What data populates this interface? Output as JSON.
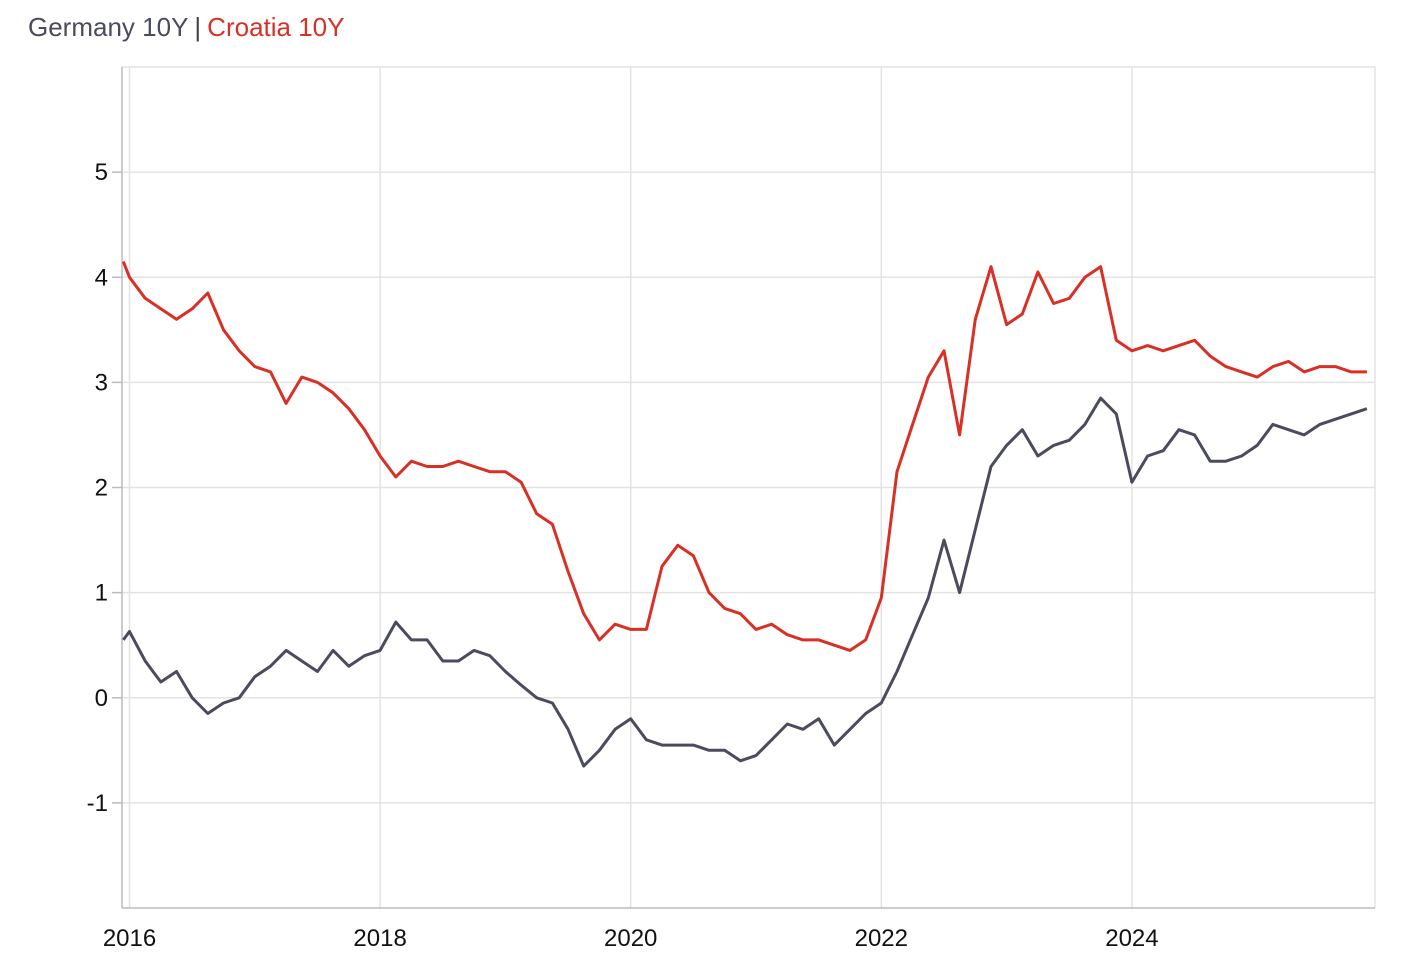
{
  "chart_data": {
    "type": "line",
    "legend_separator": "|",
    "x": [
      2015.95,
      2016.0,
      2016.125,
      2016.25,
      2016.375,
      2016.5,
      2016.625,
      2016.75,
      2016.875,
      2017.0,
      2017.125,
      2017.25,
      2017.375,
      2017.5,
      2017.625,
      2017.75,
      2017.875,
      2018.0,
      2018.125,
      2018.25,
      2018.375,
      2018.5,
      2018.625,
      2018.75,
      2018.875,
      2019.0,
      2019.125,
      2019.25,
      2019.375,
      2019.5,
      2019.625,
      2019.75,
      2019.875,
      2020.0,
      2020.125,
      2020.25,
      2020.375,
      2020.5,
      2020.625,
      2020.75,
      2020.875,
      2021.0,
      2021.125,
      2021.25,
      2021.375,
      2021.5,
      2021.625,
      2021.75,
      2021.875,
      2022.0,
      2022.125,
      2022.25,
      2022.375,
      2022.5,
      2022.625,
      2022.75,
      2022.875,
      2023.0,
      2023.125,
      2023.25,
      2023.375,
      2023.5,
      2023.625,
      2023.75,
      2023.875,
      2024.0,
      2024.125,
      2024.25,
      2024.375,
      2024.5,
      2024.625,
      2024.75,
      2024.875,
      2025.0,
      2025.125,
      2025.25,
      2025.375,
      2025.5,
      2025.625,
      2025.75,
      2025.875
    ],
    "series": [
      {
        "name": "Germany 10Y",
        "color": "#4b4b5e",
        "values": [
          0.55,
          0.63,
          0.35,
          0.15,
          0.25,
          0.0,
          -0.15,
          -0.05,
          0.0,
          0.2,
          0.3,
          0.45,
          0.35,
          0.25,
          0.45,
          0.3,
          0.4,
          0.45,
          0.72,
          0.55,
          0.55,
          0.35,
          0.35,
          0.45,
          0.4,
          0.25,
          0.12,
          0.0,
          -0.05,
          -0.3,
          -0.65,
          -0.5,
          -0.3,
          -0.2,
          -0.4,
          -0.45,
          -0.45,
          -0.45,
          -0.5,
          -0.5,
          -0.6,
          -0.55,
          -0.4,
          -0.25,
          -0.3,
          -0.2,
          -0.45,
          -0.3,
          -0.15,
          -0.05,
          0.25,
          0.6,
          0.95,
          1.5,
          1.0,
          1.6,
          2.2,
          2.4,
          2.55,
          2.3,
          2.4,
          2.45,
          2.6,
          2.85,
          2.7,
          2.05,
          2.3,
          2.35,
          2.55,
          2.5,
          2.25,
          2.25,
          2.3,
          2.4,
          2.6,
          2.55,
          2.5,
          2.6,
          2.65,
          2.7,
          2.75
        ]
      },
      {
        "name": "Croatia 10Y",
        "color": "#d93025",
        "values": [
          4.15,
          4.0,
          3.8,
          3.7,
          3.6,
          3.7,
          3.85,
          3.5,
          3.3,
          3.15,
          3.1,
          2.8,
          3.05,
          3.0,
          2.9,
          2.75,
          2.55,
          2.3,
          2.1,
          2.25,
          2.2,
          2.2,
          2.25,
          2.2,
          2.15,
          2.15,
          2.05,
          1.75,
          1.65,
          1.2,
          0.8,
          0.55,
          0.7,
          0.65,
          0.65,
          1.25,
          1.45,
          1.35,
          1.0,
          0.85,
          0.8,
          0.65,
          0.7,
          0.6,
          0.55,
          0.55,
          0.5,
          0.45,
          0.55,
          0.95,
          2.15,
          2.6,
          3.05,
          3.3,
          2.5,
          3.6,
          4.1,
          3.55,
          3.65,
          4.05,
          3.75,
          3.8,
          4.0,
          4.1,
          3.4,
          3.3,
          3.35,
          3.3,
          3.35,
          3.4,
          3.25,
          3.15,
          3.1,
          3.05,
          3.15,
          3.2,
          3.1,
          3.15,
          3.15,
          3.1,
          3.1
        ]
      }
    ],
    "xlim": [
      2015.94,
      2025.94
    ],
    "xticks": [
      2016,
      2018,
      2020,
      2022,
      2024
    ],
    "ylim": [
      -2,
      6
    ],
    "yticks": [
      -1,
      0,
      1,
      2,
      3,
      4,
      5
    ],
    "grid": true
  }
}
